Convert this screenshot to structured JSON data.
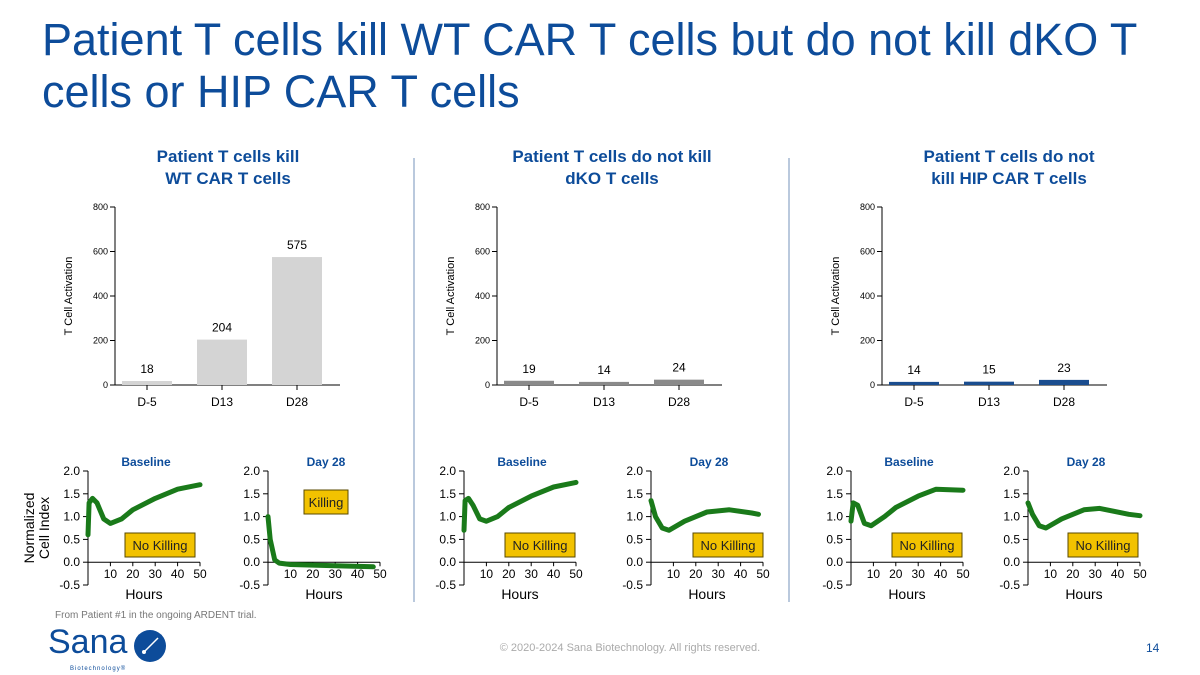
{
  "title": "Patient T cells kill WT CAR T cells but do not kill dKO T cells or HIP CAR T cells",
  "panels": [
    {
      "title_line1": "Patient T cells kill",
      "title_line2": "WT CAR T cells"
    },
    {
      "title_line1": "Patient T cells do not kill",
      "title_line2": "dKO T cells"
    },
    {
      "title_line1": "Patient T cells do not",
      "title_line2": "kill HIP CAR T cells"
    }
  ],
  "footnote": "From Patient #1 in the ongoing ARDENT trial.",
  "copyright": "© 2020-2024 Sana Biotechnology. All rights reserved.",
  "page_number": "14",
  "logo": {
    "text": "Sana",
    "subtext": "Biotechnology®",
    "color": "#0d4c9a"
  },
  "colors": {
    "title": "#0d4c9a",
    "line": "#1a7a1a",
    "label_box": "#f2c200"
  },
  "chart_data": [
    {
      "type": "bar",
      "ylabel": "T Cell Activation",
      "ylim": [
        0,
        800
      ],
      "yticks": [
        0,
        200,
        400,
        600,
        800
      ],
      "categories": [
        "D-5",
        "D13",
        "D28"
      ],
      "values": [
        18,
        204,
        575
      ],
      "color": "#d4d4d4"
    },
    {
      "type": "bar",
      "ylabel": "T Cell Activation",
      "ylim": [
        0,
        800
      ],
      "yticks": [
        0,
        200,
        400,
        600,
        800
      ],
      "categories": [
        "D-5",
        "D13",
        "D28"
      ],
      "values": [
        19,
        14,
        24
      ],
      "color": "#8a8a8a"
    },
    {
      "type": "bar",
      "ylabel": "T Cell Activation",
      "ylim": [
        0,
        800
      ],
      "yticks": [
        0,
        200,
        400,
        600,
        800
      ],
      "categories": [
        "D-5",
        "D13",
        "D28"
      ],
      "values": [
        14,
        15,
        23
      ],
      "color": "#1a4d8f"
    },
    {
      "type": "line",
      "title": "Baseline",
      "xlabel": "Hours",
      "ylabel": "Normalized Cell Index",
      "xlim": [
        0,
        50
      ],
      "ylim": [
        -0.5,
        2.0
      ],
      "xticks": [
        10,
        20,
        30,
        40,
        50
      ],
      "yticks": [
        "-0.5",
        "0.0",
        "0.5",
        "1.0",
        "1.5",
        "2.0"
      ],
      "annotation": "No Killing",
      "x": [
        0,
        0.5,
        2,
        4,
        7,
        10,
        15,
        20,
        30,
        40,
        50
      ],
      "y": [
        0.6,
        1.3,
        1.4,
        1.3,
        0.95,
        0.85,
        0.95,
        1.15,
        1.4,
        1.6,
        1.7
      ]
    },
    {
      "type": "line",
      "title": "Day 28",
      "xlabel": "Hours",
      "ylabel": "",
      "xlim": [
        0,
        50
      ],
      "ylim": [
        -0.5,
        2.0
      ],
      "xticks": [
        10,
        20,
        30,
        40,
        50
      ],
      "yticks": [
        "-0.5",
        "0.0",
        "0.5",
        "1.0",
        "1.5",
        "2.0"
      ],
      "annotation": "Killing",
      "x": [
        0,
        1,
        3,
        5,
        10,
        30,
        47
      ],
      "y": [
        1.0,
        0.5,
        0.05,
        -0.02,
        -0.05,
        -0.08,
        -0.1
      ]
    },
    {
      "type": "line",
      "title": "Baseline",
      "xlabel": "Hours",
      "ylabel": "",
      "xlim": [
        0,
        50
      ],
      "ylim": [
        -0.5,
        2.0
      ],
      "xticks": [
        10,
        20,
        30,
        40,
        50
      ],
      "yticks": [
        "-0.5",
        "0.0",
        "0.5",
        "1.0",
        "1.5",
        "2.0"
      ],
      "annotation": "No Killing",
      "x": [
        0,
        0.5,
        2,
        4,
        7,
        10,
        15,
        20,
        30,
        40,
        50
      ],
      "y": [
        0.7,
        1.35,
        1.4,
        1.25,
        0.95,
        0.9,
        1.0,
        1.2,
        1.45,
        1.65,
        1.75
      ]
    },
    {
      "type": "line",
      "title": "Day 28",
      "xlabel": "Hours",
      "ylabel": "",
      "xlim": [
        0,
        50
      ],
      "ylim": [
        -0.5,
        2.0
      ],
      "xticks": [
        10,
        20,
        30,
        40,
        50
      ],
      "yticks": [
        "-0.5",
        "0.0",
        "0.5",
        "1.0",
        "1.5",
        "2.0"
      ],
      "annotation": "No Killing",
      "x": [
        0,
        2,
        5,
        8,
        15,
        25,
        35,
        45,
        48
      ],
      "y": [
        1.35,
        1.0,
        0.75,
        0.7,
        0.9,
        1.1,
        1.15,
        1.08,
        1.05
      ]
    },
    {
      "type": "line",
      "title": "Baseline",
      "xlabel": "Hours",
      "ylabel": "",
      "xlim": [
        0,
        50
      ],
      "ylim": [
        -0.5,
        2.0
      ],
      "xticks": [
        10,
        20,
        30,
        40,
        50
      ],
      "yticks": [
        "-0.5",
        "0.0",
        "0.5",
        "1.0",
        "1.5",
        "2.0"
      ],
      "annotation": "No Killing",
      "x": [
        0,
        1,
        3,
        6,
        9,
        15,
        20,
        30,
        38,
        50
      ],
      "y": [
        0.9,
        1.3,
        1.25,
        0.85,
        0.8,
        1.0,
        1.2,
        1.45,
        1.6,
        1.58
      ]
    },
    {
      "type": "line",
      "title": "Day 28",
      "xlabel": "Hours",
      "ylabel": "",
      "xlim": [
        0,
        50
      ],
      "ylim": [
        -0.5,
        2.0
      ],
      "xticks": [
        10,
        20,
        30,
        40,
        50
      ],
      "yticks": [
        "-0.5",
        "0.0",
        "0.5",
        "1.0",
        "1.5",
        "2.0"
      ],
      "annotation": "No Killing",
      "x": [
        0,
        2,
        5,
        8,
        15,
        25,
        32,
        45,
        50
      ],
      "y": [
        1.3,
        1.05,
        0.8,
        0.75,
        0.95,
        1.15,
        1.18,
        1.05,
        1.02
      ]
    }
  ]
}
